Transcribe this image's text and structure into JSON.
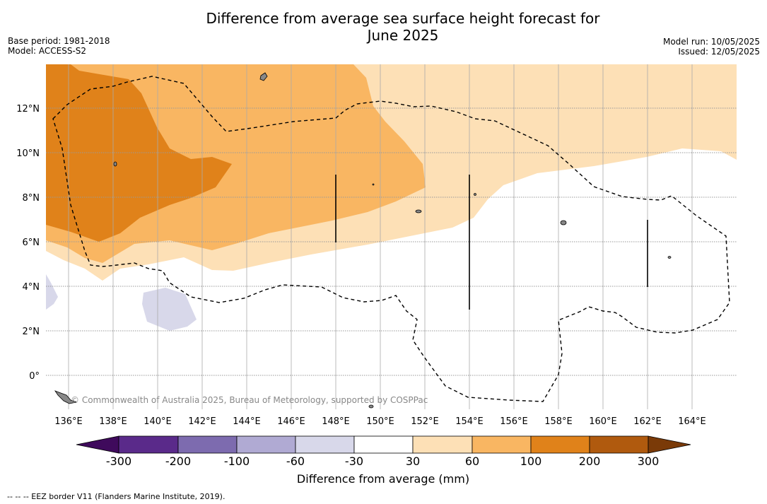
{
  "title_line1": "Difference from average sea surface height forecast for",
  "title_line2": "June 2025",
  "meta_left": {
    "base_period": "Base period: 1981-2018",
    "model": "Model: ACCESS-S2"
  },
  "meta_right": {
    "model_run": "Model run: 10/05/2025",
    "issued": "Issued: 12/05/2025"
  },
  "map": {
    "lon_ticks": [
      "136°E",
      "138°E",
      "140°E",
      "142°E",
      "144°E",
      "146°E",
      "148°E",
      "150°E",
      "152°E",
      "154°E",
      "156°E",
      "158°E",
      "160°E",
      "162°E",
      "164°E"
    ],
    "lat_ticks": [
      "12°N",
      "10°N",
      "8°N",
      "6°N",
      "4°N",
      "2°N",
      "0°"
    ],
    "copyright": "© Commonwealth of Australia 2025, Bureau of Meteorology, supported by COSPPac"
  },
  "colorbar": {
    "label": "Difference from average (mm)",
    "ticks": [
      "-300",
      "-200",
      "-100",
      "-60",
      "-30",
      "30",
      "60",
      "100",
      "200",
      "300"
    ],
    "colors": [
      "#3f0a5c",
      "#5a2a8a",
      "#7d6baf",
      "#b0aad3",
      "#d8d8ea",
      "#ffffff",
      "#fde0b6",
      "#f9b662",
      "#e0821a",
      "#b05a0e",
      "#7a3a08"
    ]
  },
  "footnote": "-- -- -- EEZ border V11 (Flanders Marine Institute, 2019)."
}
